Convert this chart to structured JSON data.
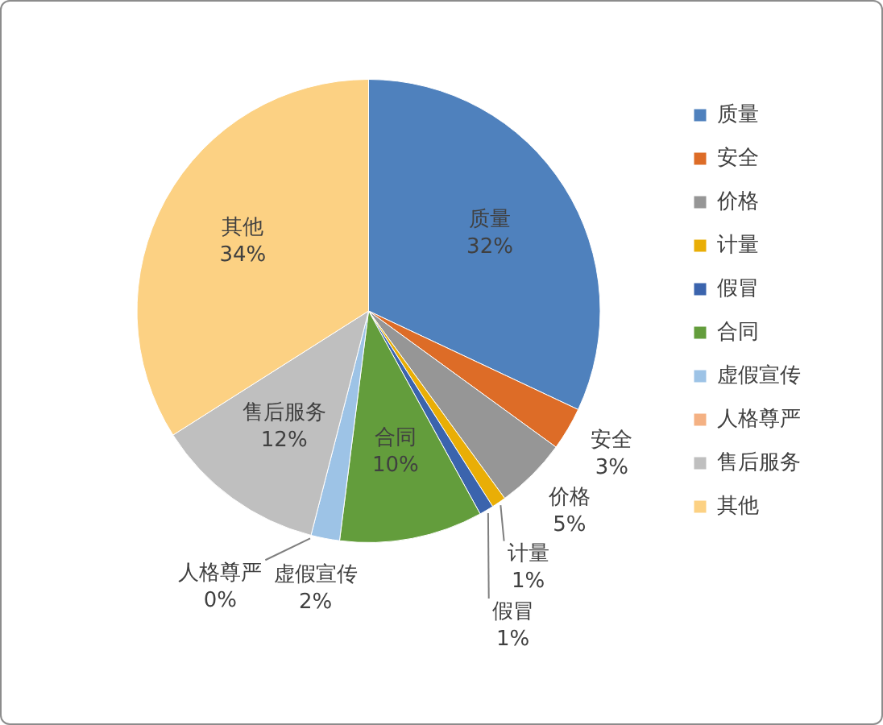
{
  "chart_data": {
    "type": "pie",
    "categories": [
      "质量",
      "安全",
      "价格",
      "计量",
      "假冒",
      "合同",
      "虚假宣传",
      "人格尊严",
      "售后服务",
      "其他"
    ],
    "values": [
      32,
      3,
      5,
      1,
      1,
      10,
      2,
      0,
      12,
      34
    ],
    "value_labels": [
      "32%",
      "3%",
      "5%",
      "1%",
      "1%",
      "10%",
      "2%",
      "0%",
      "12%",
      "34%"
    ],
    "colors": [
      "#4f81bd",
      "#dd6c27",
      "#969696",
      "#e9ae06",
      "#3b64ad",
      "#639d3c",
      "#9dc3e6",
      "#f4b183",
      "#bfbfbf",
      "#fcd183"
    ],
    "legend": "right"
  }
}
